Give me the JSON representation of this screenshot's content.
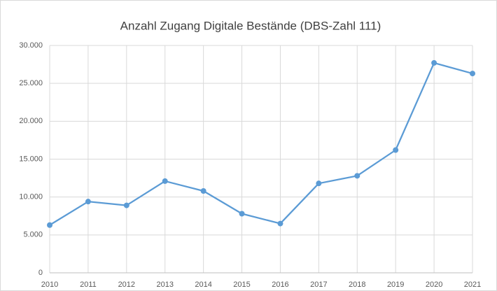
{
  "chart_data": {
    "type": "line",
    "title": "Anzahl Zugang Digitale Bestände (DBS-Zahl 111)",
    "categories": [
      "2010",
      "2011",
      "2012",
      "2013",
      "2014",
      "2015",
      "2016",
      "2017",
      "2018",
      "2019",
      "2020",
      "2021"
    ],
    "series": [
      {
        "name": "Anzahl Zugang",
        "color": "#5b9bd5",
        "values": [
          6300,
          9400,
          8900,
          12100,
          10800,
          7800,
          6500,
          11800,
          12800,
          16200,
          27700,
          26300
        ]
      }
    ],
    "ylim": [
      0,
      30000
    ],
    "yticks": [
      0,
      {
        "value": 5000,
        "label": "5.000"
      },
      {
        "value": 10000,
        "label": "10.000"
      },
      {
        "value": 15000,
        "label": "15.000"
      },
      {
        "value": 20000,
        "label": "20.000"
      },
      {
        "value": 25000,
        "label": "25.000"
      },
      {
        "value": 30000,
        "label": "30.000"
      }
    ],
    "grid": true
  }
}
